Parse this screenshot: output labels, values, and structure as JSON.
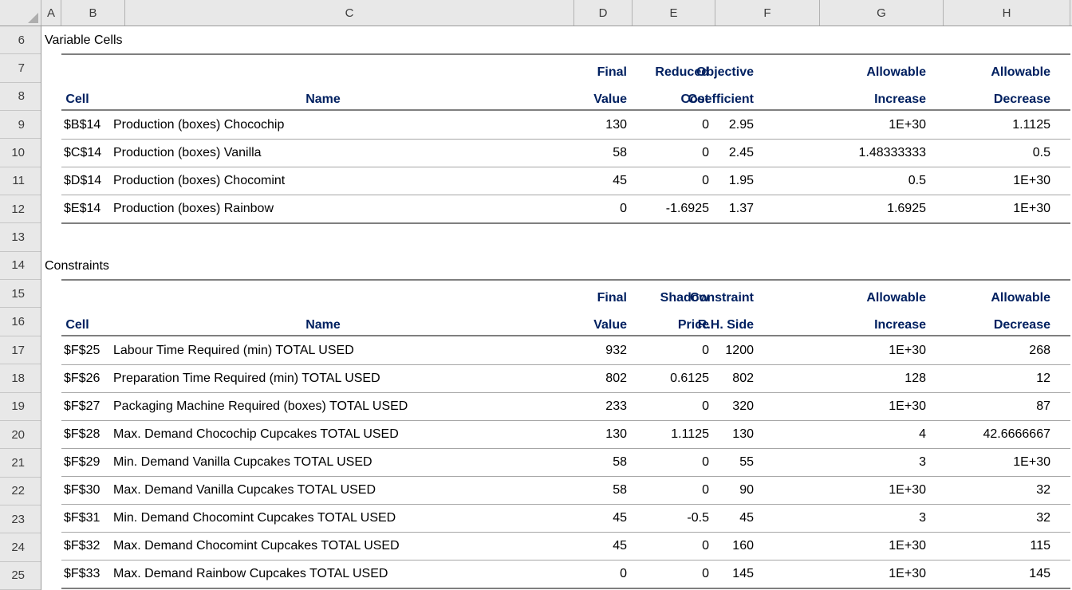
{
  "sheet": {
    "column_letters": [
      "A",
      "B",
      "C",
      "D",
      "E",
      "F",
      "G",
      "H"
    ],
    "row_numbers": [
      "6",
      "7",
      "8",
      "9",
      "10",
      "11",
      "12",
      "13",
      "14",
      "15",
      "16",
      "17",
      "18",
      "19",
      "20",
      "21",
      "22",
      "23",
      "24",
      "25"
    ]
  },
  "variable_cells": {
    "title": "Variable Cells",
    "col_headers": {
      "cell": "Cell",
      "name": "Name"
    },
    "num_headers": [
      [
        "Final",
        "Value"
      ],
      [
        "Reduced",
        "Cost"
      ],
      [
        "Objective",
        "Coefficient"
      ],
      [
        "Allowable",
        "Increase"
      ],
      [
        "Allowable",
        "Decrease"
      ]
    ],
    "rows": [
      [
        "$B$14",
        "Production (boxes) Chocochip",
        "130",
        "0",
        "2.95",
        "1E+30",
        "1.1125"
      ],
      [
        "$C$14",
        "Production (boxes) Vanilla",
        "58",
        "0",
        "2.45",
        "1.48333333",
        "0.5"
      ],
      [
        "$D$14",
        "Production (boxes) Chocomint",
        "45",
        "0",
        "1.95",
        "0.5",
        "1E+30"
      ],
      [
        "$E$14",
        "Production (boxes) Rainbow",
        "0",
        "-1.6925",
        "1.37",
        "1.6925",
        "1E+30"
      ]
    ]
  },
  "constraints": {
    "title": "Constraints",
    "col_headers": {
      "cell": "Cell",
      "name": "Name"
    },
    "num_headers": [
      [
        "Final",
        "Value"
      ],
      [
        "Shadow",
        "Price"
      ],
      [
        "Constraint",
        "R.H. Side"
      ],
      [
        "Allowable",
        "Increase"
      ],
      [
        "Allowable",
        "Decrease"
      ]
    ],
    "rows": [
      [
        "$F$25",
        "Labour Time Required (min) TOTAL USED",
        "932",
        "0",
        "1200",
        "1E+30",
        "268"
      ],
      [
        "$F$26",
        "Preparation Time Required (min) TOTAL USED",
        "802",
        "0.6125",
        "802",
        "128",
        "12"
      ],
      [
        "$F$27",
        "Packaging Machine Required (boxes) TOTAL USED",
        "233",
        "0",
        "320",
        "1E+30",
        "87"
      ],
      [
        "$F$28",
        "Max. Demand Chocochip Cupcakes TOTAL USED",
        "130",
        "1.1125",
        "130",
        "4",
        "42.6666667"
      ],
      [
        "$F$29",
        "Min. Demand Vanilla Cupcakes TOTAL USED",
        "58",
        "0",
        "55",
        "3",
        "1E+30"
      ],
      [
        "$F$30",
        "Max. Demand Vanilla Cupcakes TOTAL USED",
        "58",
        "0",
        "90",
        "1E+30",
        "32"
      ],
      [
        "$F$31",
        "Min. Demand Chocomint Cupcakes TOTAL USED",
        "45",
        "-0.5",
        "45",
        "3",
        "32"
      ],
      [
        "$F$32",
        "Max. Demand Chocomint Cupcakes TOTAL USED",
        "45",
        "0",
        "160",
        "1E+30",
        "115"
      ],
      [
        "$F$33",
        "Max. Demand Rainbow Cupcakes TOTAL USED",
        "0",
        "0",
        "145",
        "1E+30",
        "145"
      ]
    ]
  },
  "colors": {
    "header_text": "#002060",
    "chrome_bg": "#e8e8e8",
    "border_medium": "#7f7f7f",
    "border_thin": "#a6a6a6"
  }
}
